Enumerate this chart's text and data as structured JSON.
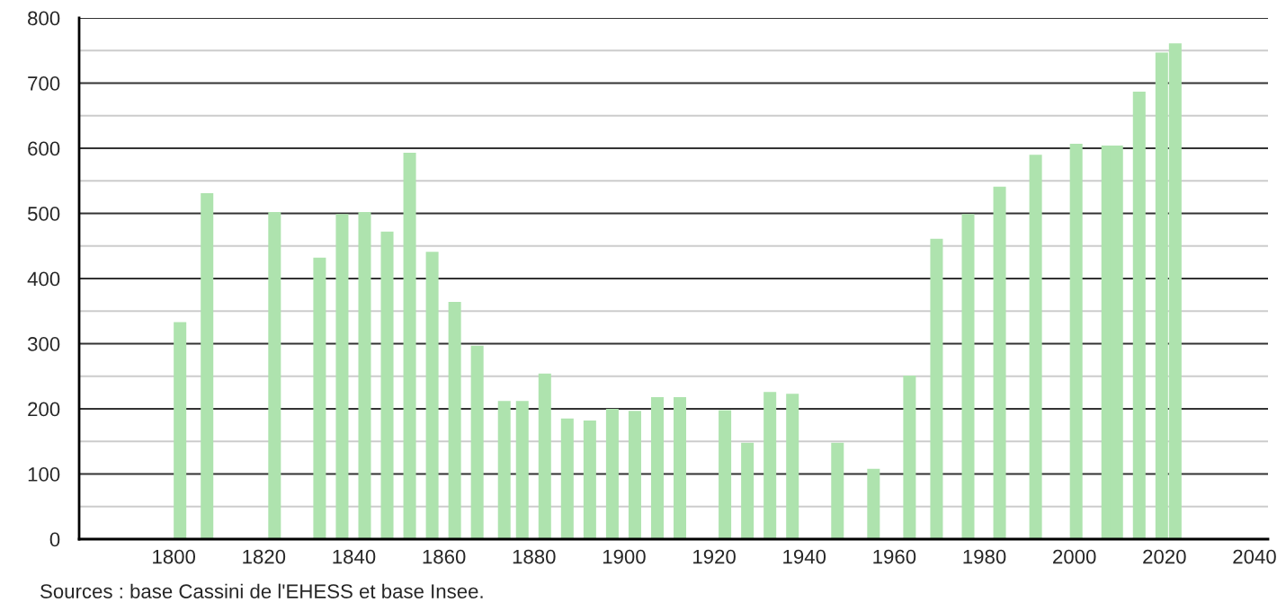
{
  "chart_data": {
    "type": "bar",
    "x": [
      1800,
      1806,
      1821,
      1831,
      1836,
      1841,
      1846,
      1851,
      1856,
      1861,
      1866,
      1872,
      1876,
      1881,
      1886,
      1891,
      1896,
      1901,
      1906,
      1911,
      1921,
      1926,
      1931,
      1936,
      1946,
      1954,
      1962,
      1968,
      1975,
      1982,
      1990,
      1999,
      2006,
      2008,
      2013,
      2018,
      2021
    ],
    "values": [
      333,
      531,
      502,
      432,
      499,
      502,
      472,
      593,
      441,
      364,
      297,
      212,
      212,
      254,
      185,
      182,
      200,
      197,
      218,
      218,
      198,
      148,
      226,
      223,
      148,
      108,
      251,
      461,
      499,
      541,
      590,
      607,
      604,
      604,
      687,
      747,
      761
    ],
    "color": "#aee3ae",
    "xlim": [
      1779,
      2043
    ],
    "xticks": [
      1800,
      1820,
      1840,
      1860,
      1880,
      1900,
      1920,
      1940,
      1960,
      1980,
      2000,
      2020,
      2040
    ],
    "ylim": [
      0,
      800
    ],
    "yticks": [
      0,
      {
        "value": 50,
        "label": null
      },
      100,
      {
        "value": 150,
        "label": null
      },
      200,
      {
        "value": 250,
        "label": null
      },
      300,
      {
        "value": 350,
        "label": null
      },
      400,
      {
        "value": 450,
        "label": null
      },
      500,
      {
        "value": 550,
        "label": null
      },
      600,
      {
        "value": 650,
        "label": null
      },
      700,
      {
        "value": 750,
        "label": null
      },
      800
    ],
    "grid": "y",
    "annotations": [
      "Sources : base Cassini de l'EHESS et base Insee."
    ]
  }
}
